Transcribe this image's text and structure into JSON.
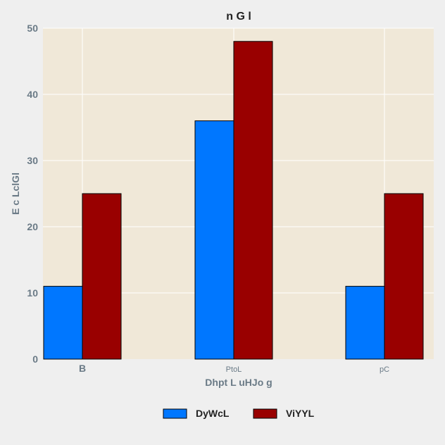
{
  "chart_data": {
    "type": "bar",
    "title": "n G l",
    "xlabel": "Dhpt L uHJo g",
    "ylabel": "E c LclGl",
    "categories": [
      "B",
      "PtoL",
      "pC"
    ],
    "series": [
      {
        "name": "DyWcL",
        "values": [
          11,
          36,
          11
        ]
      },
      {
        "name": "ViYYL",
        "values": [
          25,
          48,
          25
        ]
      }
    ],
    "ylim": [
      0,
      50
    ],
    "yticks": [
      0,
      10,
      20,
      30,
      40,
      50
    ],
    "grid": true,
    "legend_position": "bottom-center",
    "colors": {
      "page_background": "#efefef",
      "plot_background": "#f0e8d8",
      "grid": "#ffffff",
      "series": [
        "#0077ff",
        "#990000"
      ],
      "bar_edge": "#000000"
    }
  }
}
